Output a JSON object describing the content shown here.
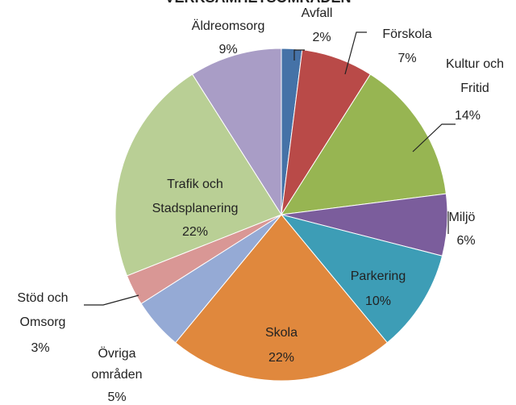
{
  "chart_data": {
    "type": "pie",
    "title": "VERKSAMHETSOMRÅDEN",
    "categories": [
      "Avfall",
      "Förskola",
      "Kultur och Fritid",
      "Miljö",
      "Parkering",
      "Skola",
      "Övriga områden",
      "Stöd och Omsorg",
      "Trafik och Stadsplanering",
      "Äldreomsorg"
    ],
    "values": [
      2,
      7,
      14,
      6,
      10,
      22,
      5,
      3,
      22,
      9
    ],
    "value_labels": [
      "2%",
      "7%",
      "14%",
      "6%",
      "10%",
      "22%",
      "5%",
      "3%",
      "22%",
      "9%"
    ],
    "colors": [
      "#4572a7",
      "#b94a48",
      "#97b552",
      "#7b5d9c",
      "#3d9db6",
      "#e0883d",
      "#95aad5",
      "#d99795",
      "#b9cf95",
      "#a99dc6"
    ]
  }
}
